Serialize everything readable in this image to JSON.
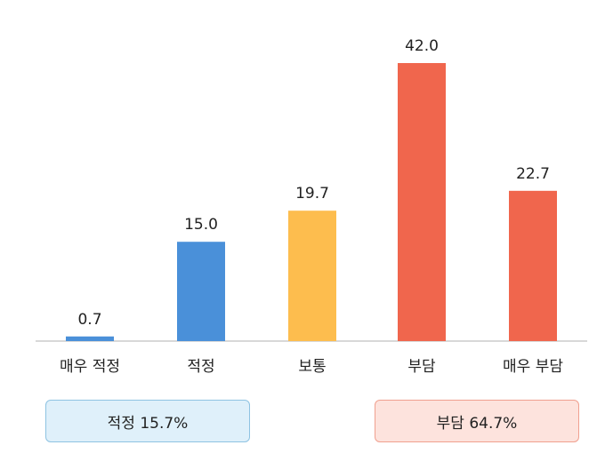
{
  "chart_data": {
    "type": "bar",
    "categories": [
      "매우 적정",
      "적정",
      "보통",
      "부담",
      "매우 부담"
    ],
    "values": [
      0.7,
      15.0,
      19.7,
      42.0,
      22.7
    ],
    "value_labels": [
      "0.7",
      "15.0",
      "19.7",
      "42.0",
      "22.7"
    ],
    "colors": [
      "#4a90d9",
      "#4a90d9",
      "#fdbd4e",
      "#f0664d",
      "#f0664d"
    ],
    "ylim": [
      0,
      42.0
    ],
    "grid": false,
    "legend": "none",
    "groups": [
      {
        "label": "적정 15.7%",
        "fill": "#dff0fa",
        "border": "#8ec3e2"
      },
      {
        "label": "부담 64.7%",
        "fill": "#fde3dd",
        "border": "#f0a08f"
      }
    ]
  }
}
